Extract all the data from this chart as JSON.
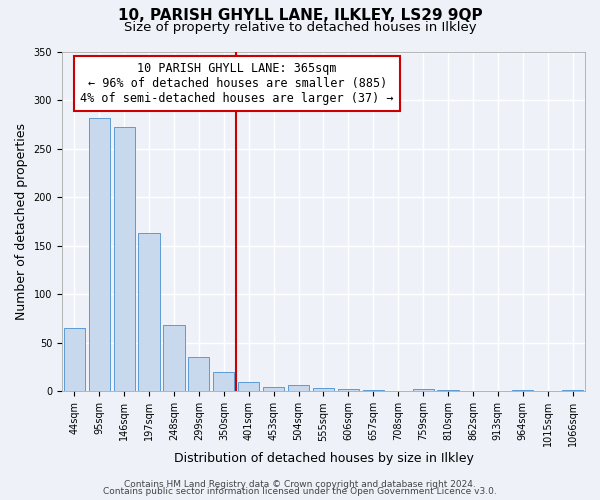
{
  "title": "10, PARISH GHYLL LANE, ILKLEY, LS29 9QP",
  "subtitle": "Size of property relative to detached houses in Ilkley",
  "xlabel": "Distribution of detached houses by size in Ilkley",
  "ylabel": "Number of detached properties",
  "bin_labels": [
    "44sqm",
    "95sqm",
    "146sqm",
    "197sqm",
    "248sqm",
    "299sqm",
    "350sqm",
    "401sqm",
    "453sqm",
    "504sqm",
    "555sqm",
    "606sqm",
    "657sqm",
    "708sqm",
    "759sqm",
    "810sqm",
    "862sqm",
    "913sqm",
    "964sqm",
    "1015sqm",
    "1066sqm"
  ],
  "bar_values": [
    65,
    281,
    272,
    163,
    68,
    35,
    20,
    10,
    4,
    7,
    3,
    2,
    1,
    0,
    2,
    1,
    0,
    0,
    1,
    0,
    1
  ],
  "bar_color": "#c8d9ed",
  "bar_edge_color": "#5b9bd5",
  "vline_x": 6.5,
  "vline_color": "#cc0000",
  "annotation_text": "10 PARISH GHYLL LANE: 365sqm\n← 96% of detached houses are smaller (885)\n4% of semi-detached houses are larger (37) →",
  "annotation_box_color": "#ffffff",
  "annotation_box_edge_color": "#cc0000",
  "ylim": [
    0,
    350
  ],
  "yticks": [
    0,
    50,
    100,
    150,
    200,
    250,
    300,
    350
  ],
  "footer1": "Contains HM Land Registry data © Crown copyright and database right 2024.",
  "footer2": "Contains public sector information licensed under the Open Government Licence v3.0.",
  "background_color": "#eef2f8",
  "grid_color": "#ffffff",
  "title_fontsize": 11,
  "subtitle_fontsize": 9.5,
  "axis_label_fontsize": 9,
  "tick_fontsize": 7,
  "annotation_fontsize": 8.5,
  "footer_fontsize": 6.5
}
